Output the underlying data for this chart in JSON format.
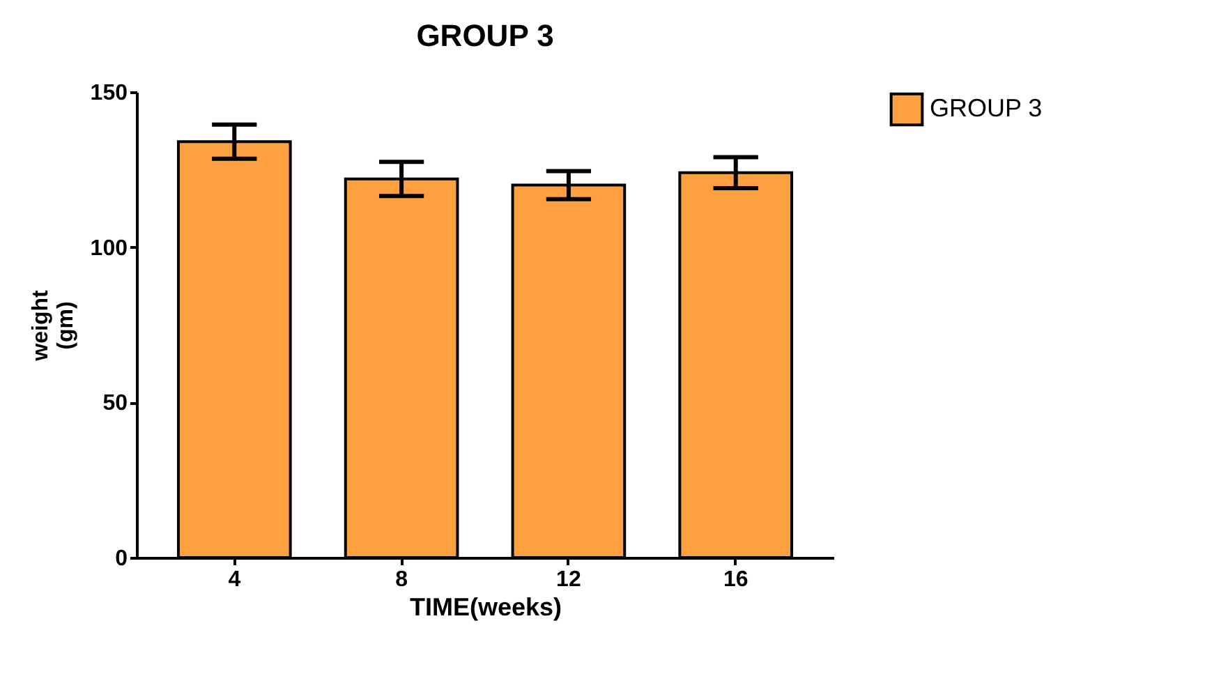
{
  "chart_data": {
    "type": "bar",
    "title": "GROUP 3",
    "xlabel": "TIME(weeks)",
    "ylabel": "weight\n(gm)",
    "categories": [
      "4",
      "8",
      "12",
      "16"
    ],
    "series": [
      {
        "name": "GROUP 3",
        "color": "#ffa040",
        "values": [
          134,
          122,
          120,
          124
        ],
        "errors": [
          5.5,
          5.5,
          4.5,
          5
        ]
      }
    ],
    "ylim": [
      0,
      150
    ],
    "yticks": [
      0,
      50,
      100,
      150
    ],
    "grid": false,
    "legend": "top right"
  }
}
